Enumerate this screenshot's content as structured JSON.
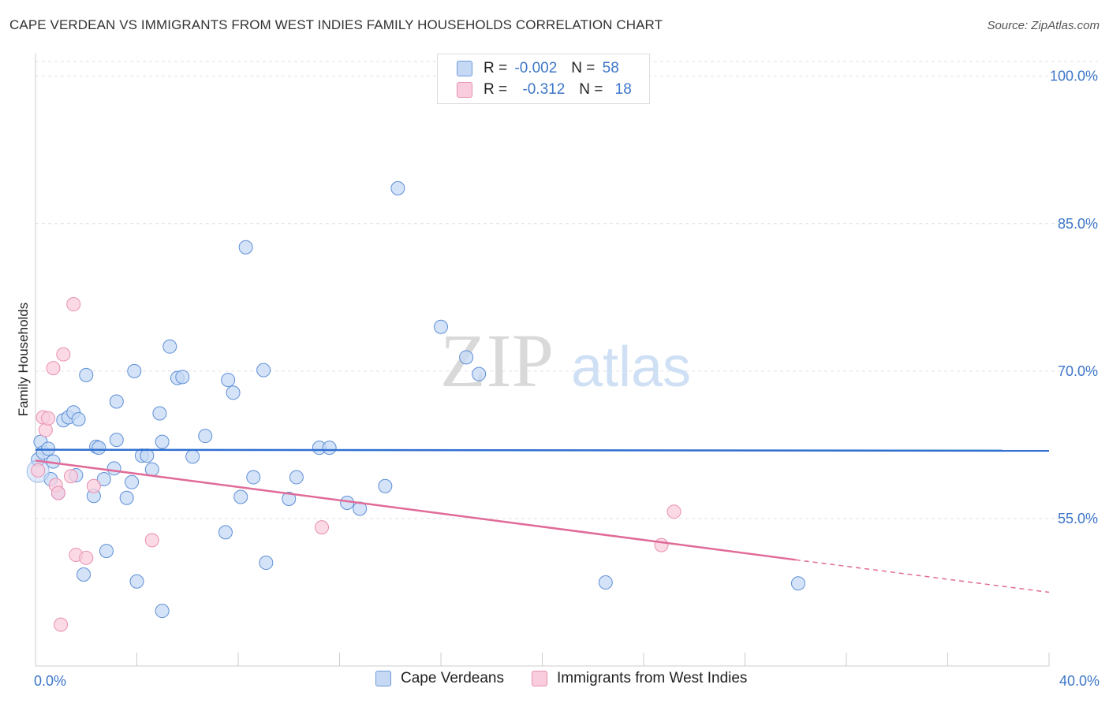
{
  "title": "CAPE VERDEAN VS IMMIGRANTS FROM WEST INDIES FAMILY HOUSEHOLDS CORRELATION CHART",
  "source": "Source: ZipAtlas.com",
  "legend": {
    "rows": [
      {
        "r_label": "R =",
        "r_value": "-0.002",
        "n_label": "N =",
        "n_value": "58"
      },
      {
        "r_label": "R =",
        "r_value": "-0.312",
        "n_label": "N =",
        "n_value": "18"
      }
    ]
  },
  "bottom_legend": {
    "series1": "Cape Verdeans",
    "series2": "Immigrants from West Indies"
  },
  "colors": {
    "blue": "#3d76c9",
    "blue_fill": "#c5d9f5",
    "blue_line": "#2f6fd0",
    "pink": "#e06b98",
    "pink_fill": "#f9cddd"
  },
  "chart_data": {
    "type": "scatter",
    "title": "CAPE VERDEAN VS IMMIGRANTS FROM WEST INDIES FAMILY HOUSEHOLDS CORRELATION CHART",
    "xlabel": "",
    "ylabel": "Family Households",
    "xlim": [
      0,
      40
    ],
    "ylim": [
      40,
      101.5
    ],
    "x_tick_labels": [
      "0.0%",
      "40.0%"
    ],
    "y_ticks": [
      55,
      70,
      85,
      100
    ],
    "y_tick_labels": [
      "55.0%",
      "70.0%",
      "85.0%",
      "100.0%"
    ],
    "watermark": "ZIPatlas",
    "series": [
      {
        "name": "Cape Verdeans",
        "R": -0.002,
        "N": 58,
        "trend": {
          "x0": 0,
          "y0": 62.0,
          "x1": 40,
          "y1": 61.9
        },
        "points": [
          [
            0.1,
            61.0
          ],
          [
            0.2,
            62.8
          ],
          [
            0.3,
            61.7
          ],
          [
            0.5,
            62.1
          ],
          [
            0.6,
            59.0
          ],
          [
            0.7,
            60.8
          ],
          [
            0.9,
            57.6
          ],
          [
            1.1,
            65.0
          ],
          [
            1.3,
            65.3
          ],
          [
            1.5,
            65.8
          ],
          [
            1.6,
            59.4
          ],
          [
            1.7,
            65.1
          ],
          [
            1.9,
            49.3
          ],
          [
            2.0,
            69.6
          ],
          [
            2.3,
            57.3
          ],
          [
            2.4,
            62.3
          ],
          [
            2.5,
            62.2
          ],
          [
            2.7,
            59.0
          ],
          [
            2.8,
            51.7
          ],
          [
            3.1,
            60.1
          ],
          [
            3.2,
            63.0
          ],
          [
            3.2,
            66.9
          ],
          [
            3.6,
            57.1
          ],
          [
            3.8,
            58.7
          ],
          [
            3.9,
            70.0
          ],
          [
            4.0,
            48.6
          ],
          [
            4.2,
            61.4
          ],
          [
            4.4,
            61.4
          ],
          [
            4.6,
            60.0
          ],
          [
            4.9,
            65.7
          ],
          [
            5.0,
            62.8
          ],
          [
            5.0,
            45.6
          ],
          [
            5.3,
            72.5
          ],
          [
            5.6,
            69.3
          ],
          [
            5.8,
            69.4
          ],
          [
            6.2,
            61.3
          ],
          [
            6.7,
            63.4
          ],
          [
            7.5,
            53.6
          ],
          [
            7.6,
            69.1
          ],
          [
            7.8,
            67.8
          ],
          [
            8.1,
            57.2
          ],
          [
            8.3,
            82.6
          ],
          [
            8.6,
            59.2
          ],
          [
            9.0,
            70.1
          ],
          [
            9.1,
            50.5
          ],
          [
            10.0,
            57.0
          ],
          [
            10.3,
            59.2
          ],
          [
            11.2,
            62.2
          ],
          [
            11.6,
            62.2
          ],
          [
            12.3,
            56.6
          ],
          [
            12.8,
            56.0
          ],
          [
            13.8,
            58.3
          ],
          [
            14.3,
            88.6
          ],
          [
            16.0,
            74.5
          ],
          [
            17.0,
            71.4
          ],
          [
            17.5,
            69.7
          ],
          [
            22.5,
            48.5
          ],
          [
            30.1,
            48.4
          ]
        ]
      },
      {
        "name": "Immigrants from West Indies",
        "R": -0.312,
        "N": 18,
        "trend": {
          "x0": 0,
          "y0": 60.9,
          "x1": 30.0,
          "y1": 50.8,
          "x_dash_end": 40,
          "y_dash_end": 47.5
        },
        "points": [
          [
            0.1,
            59.9
          ],
          [
            0.3,
            65.3
          ],
          [
            0.4,
            64.0
          ],
          [
            0.5,
            65.2
          ],
          [
            0.7,
            70.3
          ],
          [
            0.8,
            58.4
          ],
          [
            0.9,
            57.6
          ],
          [
            1.0,
            44.2
          ],
          [
            1.1,
            71.7
          ],
          [
            1.4,
            59.3
          ],
          [
            1.5,
            76.8
          ],
          [
            1.6,
            51.3
          ],
          [
            2.0,
            51.0
          ],
          [
            2.3,
            58.3
          ],
          [
            4.6,
            52.8
          ],
          [
            11.3,
            54.1
          ],
          [
            24.7,
            52.3
          ],
          [
            25.2,
            55.7
          ]
        ]
      }
    ]
  }
}
